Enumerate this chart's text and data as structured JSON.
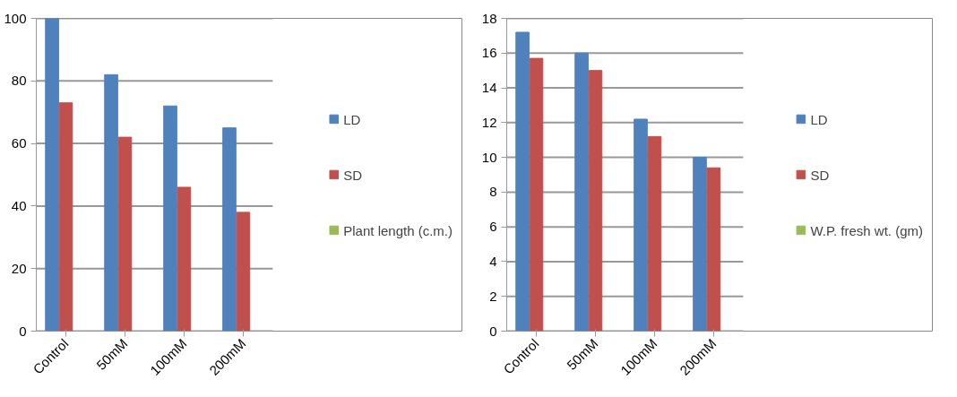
{
  "chart_data": [
    {
      "type": "bar",
      "categories": [
        "Control",
        "50mM",
        "100mM",
        "200mM"
      ],
      "series": [
        {
          "name": "LD",
          "color": "#4f81bd",
          "values": [
            100,
            82,
            72,
            65
          ]
        },
        {
          "name": "SD",
          "color": "#c0504d",
          "values": [
            73,
            62,
            46,
            38
          ]
        },
        {
          "name": "Plant length (c.m.)",
          "color": "#9bbb59",
          "values": [
            null,
            null,
            null,
            null
          ]
        }
      ],
      "ylim": [
        0,
        100
      ],
      "yticks": [
        0,
        20,
        40,
        60,
        80,
        100
      ],
      "grid": "y",
      "legend": "right"
    },
    {
      "type": "bar",
      "categories": [
        "Control",
        "50mM",
        "100mM",
        "200mM"
      ],
      "series": [
        {
          "name": "LD",
          "color": "#4f81bd",
          "values": [
            17.2,
            16,
            12.2,
            10
          ]
        },
        {
          "name": "SD",
          "color": "#c0504d",
          "values": [
            15.7,
            15,
            11.2,
            9.4
          ]
        },
        {
          "name": "W.P. fresh wt. (gm)",
          "color": "#9bbb59",
          "values": [
            null,
            null,
            null,
            null
          ]
        }
      ],
      "ylim": [
        0,
        18
      ],
      "yticks": [
        0,
        2,
        4,
        6,
        8,
        10,
        12,
        14,
        16,
        18
      ],
      "grid": "y",
      "legend": "right"
    }
  ]
}
